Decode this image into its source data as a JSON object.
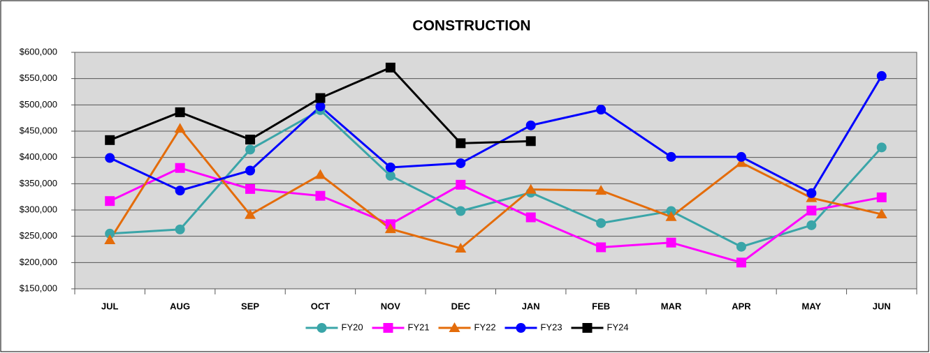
{
  "chart_data": {
    "type": "line",
    "title": "CONSTRUCTION",
    "categories": [
      "JUL",
      "AUG",
      "SEP",
      "OCT",
      "NOV",
      "DEC",
      "JAN",
      "FEB",
      "MAR",
      "APR",
      "MAY",
      "JUN"
    ],
    "series": [
      {
        "name": "FY20",
        "color": "#3aa5a8",
        "marker": "circle",
        "values": [
          255000,
          263000,
          415000,
          490000,
          365000,
          298000,
          333000,
          275000,
          298000,
          230000,
          271000,
          419000
        ]
      },
      {
        "name": "FY21",
        "color": "#ff00ff",
        "marker": "square",
        "values": [
          317000,
          380000,
          340000,
          327000,
          273000,
          348000,
          286000,
          229000,
          238000,
          200000,
          299000,
          324000
        ]
      },
      {
        "name": "FY22",
        "color": "#e46c0a",
        "marker": "triangle",
        "values": [
          243000,
          455000,
          291000,
          367000,
          264000,
          227000,
          339000,
          337000,
          287000,
          390000,
          323000,
          292000
        ]
      },
      {
        "name": "FY23",
        "color": "#0000ff",
        "marker": "circle",
        "values": [
          399000,
          337000,
          375000,
          497000,
          381000,
          389000,
          461000,
          491000,
          401000,
          401000,
          332000,
          555000
        ]
      },
      {
        "name": "FY24",
        "color": "#000000",
        "marker": "square",
        "values": [
          433000,
          486000,
          434000,
          513000,
          571000,
          427000,
          431000,
          null,
          null,
          null,
          null,
          null
        ]
      }
    ],
    "ylim": [
      150000,
      600000
    ],
    "yticks": [
      {
        "value": 150000,
        "label": "$150,000"
      },
      {
        "value": 200000,
        "label": "$200,000"
      },
      {
        "value": 250000,
        "label": "$250,000"
      },
      {
        "value": 300000,
        "label": "$300,000"
      },
      {
        "value": 350000,
        "label": "$350,000"
      },
      {
        "value": 400000,
        "label": "$400,000"
      },
      {
        "value": 450000,
        "label": "$450,000"
      },
      {
        "value": 500000,
        "label": "$500,000"
      },
      {
        "value": 550000,
        "label": "$550,000"
      },
      {
        "value": 600000,
        "label": "$600,000"
      }
    ],
    "grid": true,
    "legend": "bottom"
  }
}
